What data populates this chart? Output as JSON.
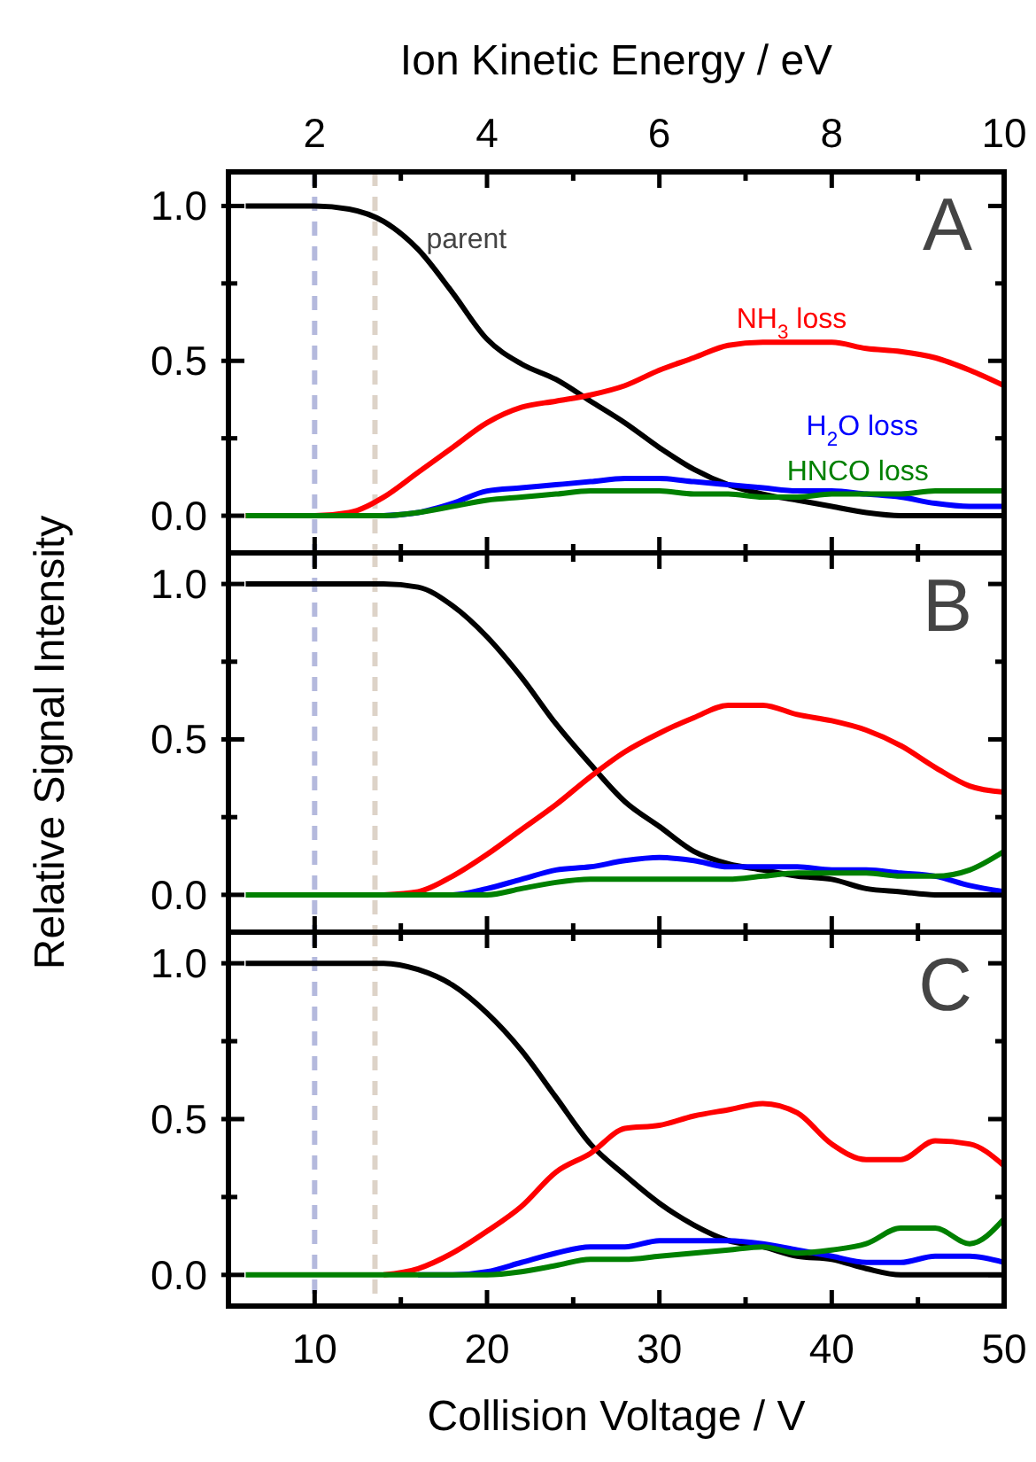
{
  "chart_data": [
    {
      "type": "line",
      "x2label": "Ion Kinetic Energy / eV",
      "x2lim": [
        1,
        10
      ],
      "x2ticks": [
        2,
        {
          "value": 3,
          "label": null
        },
        4,
        {
          "value": 5,
          "label": null
        },
        6,
        {
          "value": 7,
          "label": null
        },
        8,
        {
          "value": 9,
          "label": null
        },
        10
      ],
      "xlim": [
        5,
        50
      ],
      "xticks": [
        10,
        {
          "value": 15,
          "label": null
        },
        20,
        {
          "value": 25,
          "label": null
        },
        30,
        {
          "value": 35,
          "label": null
        },
        40,
        {
          "value": 45,
          "label": null
        },
        50
      ],
      "ylim": [
        -0.12,
        1.11
      ],
      "yticks": [
        {
          "value": 0,
          "label": "0.0"
        },
        {
          "value": 0.25,
          "label": null
        },
        {
          "value": 0.5,
          "label": "0.5"
        },
        {
          "value": 0.75,
          "label": null
        },
        {
          "value": 1,
          "label": "1.0"
        }
      ],
      "tick_labels": "y",
      "x": [
        6,
        8,
        10,
        12,
        14,
        16,
        18,
        20,
        22,
        24,
        26,
        28,
        30,
        32,
        34,
        36,
        38,
        40,
        42,
        44,
        46,
        48,
        50
      ],
      "series": [
        {
          "name": "parent",
          "color": "#000000",
          "values": [
            1,
            1,
            1,
            0.99,
            0.95,
            0.86,
            0.72,
            0.57,
            0.49,
            0.44,
            0.37,
            0.3,
            0.22,
            0.15,
            0.1,
            0.07,
            0.05,
            0.03,
            0.01,
            0,
            0,
            0,
            0
          ]
        },
        {
          "name": "NH$_{3}$ loss",
          "color": "#ff0000",
          "values": [
            0,
            0,
            0,
            0.01,
            0.06,
            0.14,
            0.22,
            0.3,
            0.35,
            0.37,
            0.39,
            0.42,
            0.47,
            0.51,
            0.55,
            0.56,
            0.56,
            0.56,
            0.54,
            0.53,
            0.51,
            0.47,
            0.42
          ]
        },
        {
          "name": "H$_{2}$O loss",
          "color": "#0000ff",
          "values": [
            null,
            null,
            null,
            null,
            0,
            0.01,
            0.04,
            0.08,
            0.09,
            0.1,
            0.11,
            0.12,
            0.12,
            0.11,
            0.1,
            0.09,
            0.08,
            0.08,
            0.07,
            0.06,
            0.04,
            0.03,
            0.03
          ]
        },
        {
          "name": "HNCO loss",
          "color": "#008000",
          "values": [
            0,
            0,
            0,
            0,
            0,
            0.01,
            0.03,
            0.05,
            0.06,
            0.07,
            0.08,
            0.08,
            0.08,
            0.07,
            0.07,
            0.06,
            0.06,
            0.07,
            0.07,
            0.07,
            0.08,
            0.08,
            0.08
          ]
        }
      ],
      "ref_lines": [
        {
          "axis": "x",
          "value": 10,
          "color": "#b4b9dd",
          "line_style": "dashed"
        },
        {
          "axis": "x",
          "value": 13.5,
          "color": "#ddd3c8",
          "line_style": "dashed"
        }
      ],
      "annotations": [
        "A"
      ]
    },
    {
      "type": "line",
      "ylabel": "Relative Signal Intensity",
      "xlim": [
        5,
        50
      ],
      "xticks": [
        10,
        {
          "value": 15,
          "label": null
        },
        20,
        {
          "value": 25,
          "label": null
        },
        30,
        {
          "value": 35,
          "label": null
        },
        40,
        {
          "value": 45,
          "label": null
        },
        50
      ],
      "ylim": [
        -0.12,
        1.1
      ],
      "yticks": [
        {
          "value": 0,
          "label": "0.0"
        },
        {
          "value": 0.25,
          "label": null
        },
        {
          "value": 0.5,
          "label": "0.5"
        },
        {
          "value": 0.75,
          "label": null
        },
        {
          "value": 1,
          "label": "1.0"
        }
      ],
      "tick_labels": "y",
      "x": [
        6,
        8,
        10,
        12,
        14,
        16,
        18,
        20,
        22,
        24,
        26,
        28,
        30,
        32,
        34,
        36,
        38,
        40,
        42,
        44,
        46,
        48,
        50
      ],
      "series": [
        {
          "color": "#000000",
          "values": [
            1,
            1,
            1,
            1,
            1,
            0.99,
            0.93,
            0.83,
            0.7,
            0.55,
            0.42,
            0.3,
            0.22,
            0.14,
            0.1,
            0.08,
            0.06,
            0.05,
            0.02,
            0.01,
            0,
            0,
            0
          ]
        },
        {
          "color": "#ff0000",
          "values": [
            null,
            null,
            null,
            null,
            0,
            0.01,
            0.06,
            0.13,
            0.21,
            0.29,
            0.38,
            0.46,
            0.52,
            0.57,
            0.61,
            0.61,
            0.58,
            0.56,
            0.53,
            0.48,
            0.41,
            0.35,
            0.33
          ]
        },
        {
          "color": "#0000ff",
          "values": [
            null,
            null,
            null,
            null,
            null,
            0,
            0,
            0.02,
            0.05,
            0.08,
            0.09,
            0.11,
            0.12,
            0.11,
            0.09,
            0.09,
            0.09,
            0.08,
            0.08,
            0.07,
            0.06,
            0.03,
            0.01
          ]
        },
        {
          "color": "#008000",
          "values": [
            0,
            0,
            0,
            0,
            0,
            0,
            0,
            0,
            0.02,
            0.04,
            0.05,
            0.05,
            0.05,
            0.05,
            0.05,
            0.06,
            0.07,
            0.07,
            0.07,
            0.06,
            0.06,
            0.08,
            0.14
          ]
        }
      ],
      "ref_lines": [
        {
          "axis": "x",
          "value": 10,
          "color": "#b4b9dd",
          "line_style": "dashed"
        },
        {
          "axis": "x",
          "value": 13.5,
          "color": "#ddd3c8",
          "line_style": "dashed"
        }
      ],
      "annotations": [
        "B"
      ]
    },
    {
      "type": "line",
      "xlabel": "Collision Voltage / V",
      "xlim": [
        5,
        50
      ],
      "xticks": [
        10,
        {
          "value": 15,
          "label": null
        },
        20,
        {
          "value": 25,
          "label": null
        },
        30,
        {
          "value": 35,
          "label": null
        },
        40,
        {
          "value": 45,
          "label": null
        },
        50
      ],
      "ylim": [
        -0.1,
        1.1
      ],
      "yticks": [
        {
          "value": 0,
          "label": "0.0"
        },
        {
          "value": 0.25,
          "label": null
        },
        {
          "value": 0.5,
          "label": "0.5"
        },
        {
          "value": 0.75,
          "label": null
        },
        {
          "value": 1,
          "label": "1.0"
        }
      ],
      "x": [
        6,
        8,
        10,
        12,
        14,
        16,
        18,
        20,
        22,
        24,
        26,
        28,
        30,
        32,
        34,
        36,
        38,
        40,
        42,
        44,
        46,
        48,
        50
      ],
      "series": [
        {
          "color": "#000000",
          "values": [
            1,
            1,
            1,
            1,
            1,
            0.98,
            0.93,
            0.84,
            0.72,
            0.57,
            0.42,
            0.32,
            0.23,
            0.16,
            0.11,
            0.09,
            0.06,
            0.05,
            0.02,
            0,
            0,
            0,
            0
          ]
        },
        {
          "color": "#ff0000",
          "values": [
            null,
            null,
            null,
            null,
            0,
            0.02,
            0.07,
            0.14,
            0.22,
            0.33,
            0.39,
            0.47,
            0.48,
            0.51,
            0.53,
            0.55,
            0.52,
            0.42,
            0.37,
            0.37,
            0.43,
            0.42,
            0.35
          ]
        },
        {
          "color": "#0000ff",
          "values": [
            null,
            null,
            null,
            null,
            null,
            0,
            0,
            0.01,
            0.04,
            0.07,
            0.09,
            0.09,
            0.11,
            0.11,
            0.11,
            0.1,
            0.08,
            0.06,
            0.04,
            0.04,
            0.06,
            0.06,
            0.04
          ]
        },
        {
          "color": "#008000",
          "values": [
            0,
            0,
            0,
            0,
            0,
            0,
            0,
            0,
            0.01,
            0.03,
            0.05,
            0.05,
            0.06,
            0.07,
            0.08,
            0.09,
            0.07,
            0.08,
            0.1,
            0.15,
            0.15,
            0.1,
            0.18
          ]
        }
      ],
      "ref_lines": [
        {
          "axis": "x",
          "value": 10,
          "color": "#b4b9dd",
          "line_style": "dashed"
        },
        {
          "axis": "x",
          "value": 13.5,
          "color": "#ddd3c8",
          "line_style": "dashed"
        }
      ],
      "annotations": [
        "C"
      ]
    }
  ]
}
